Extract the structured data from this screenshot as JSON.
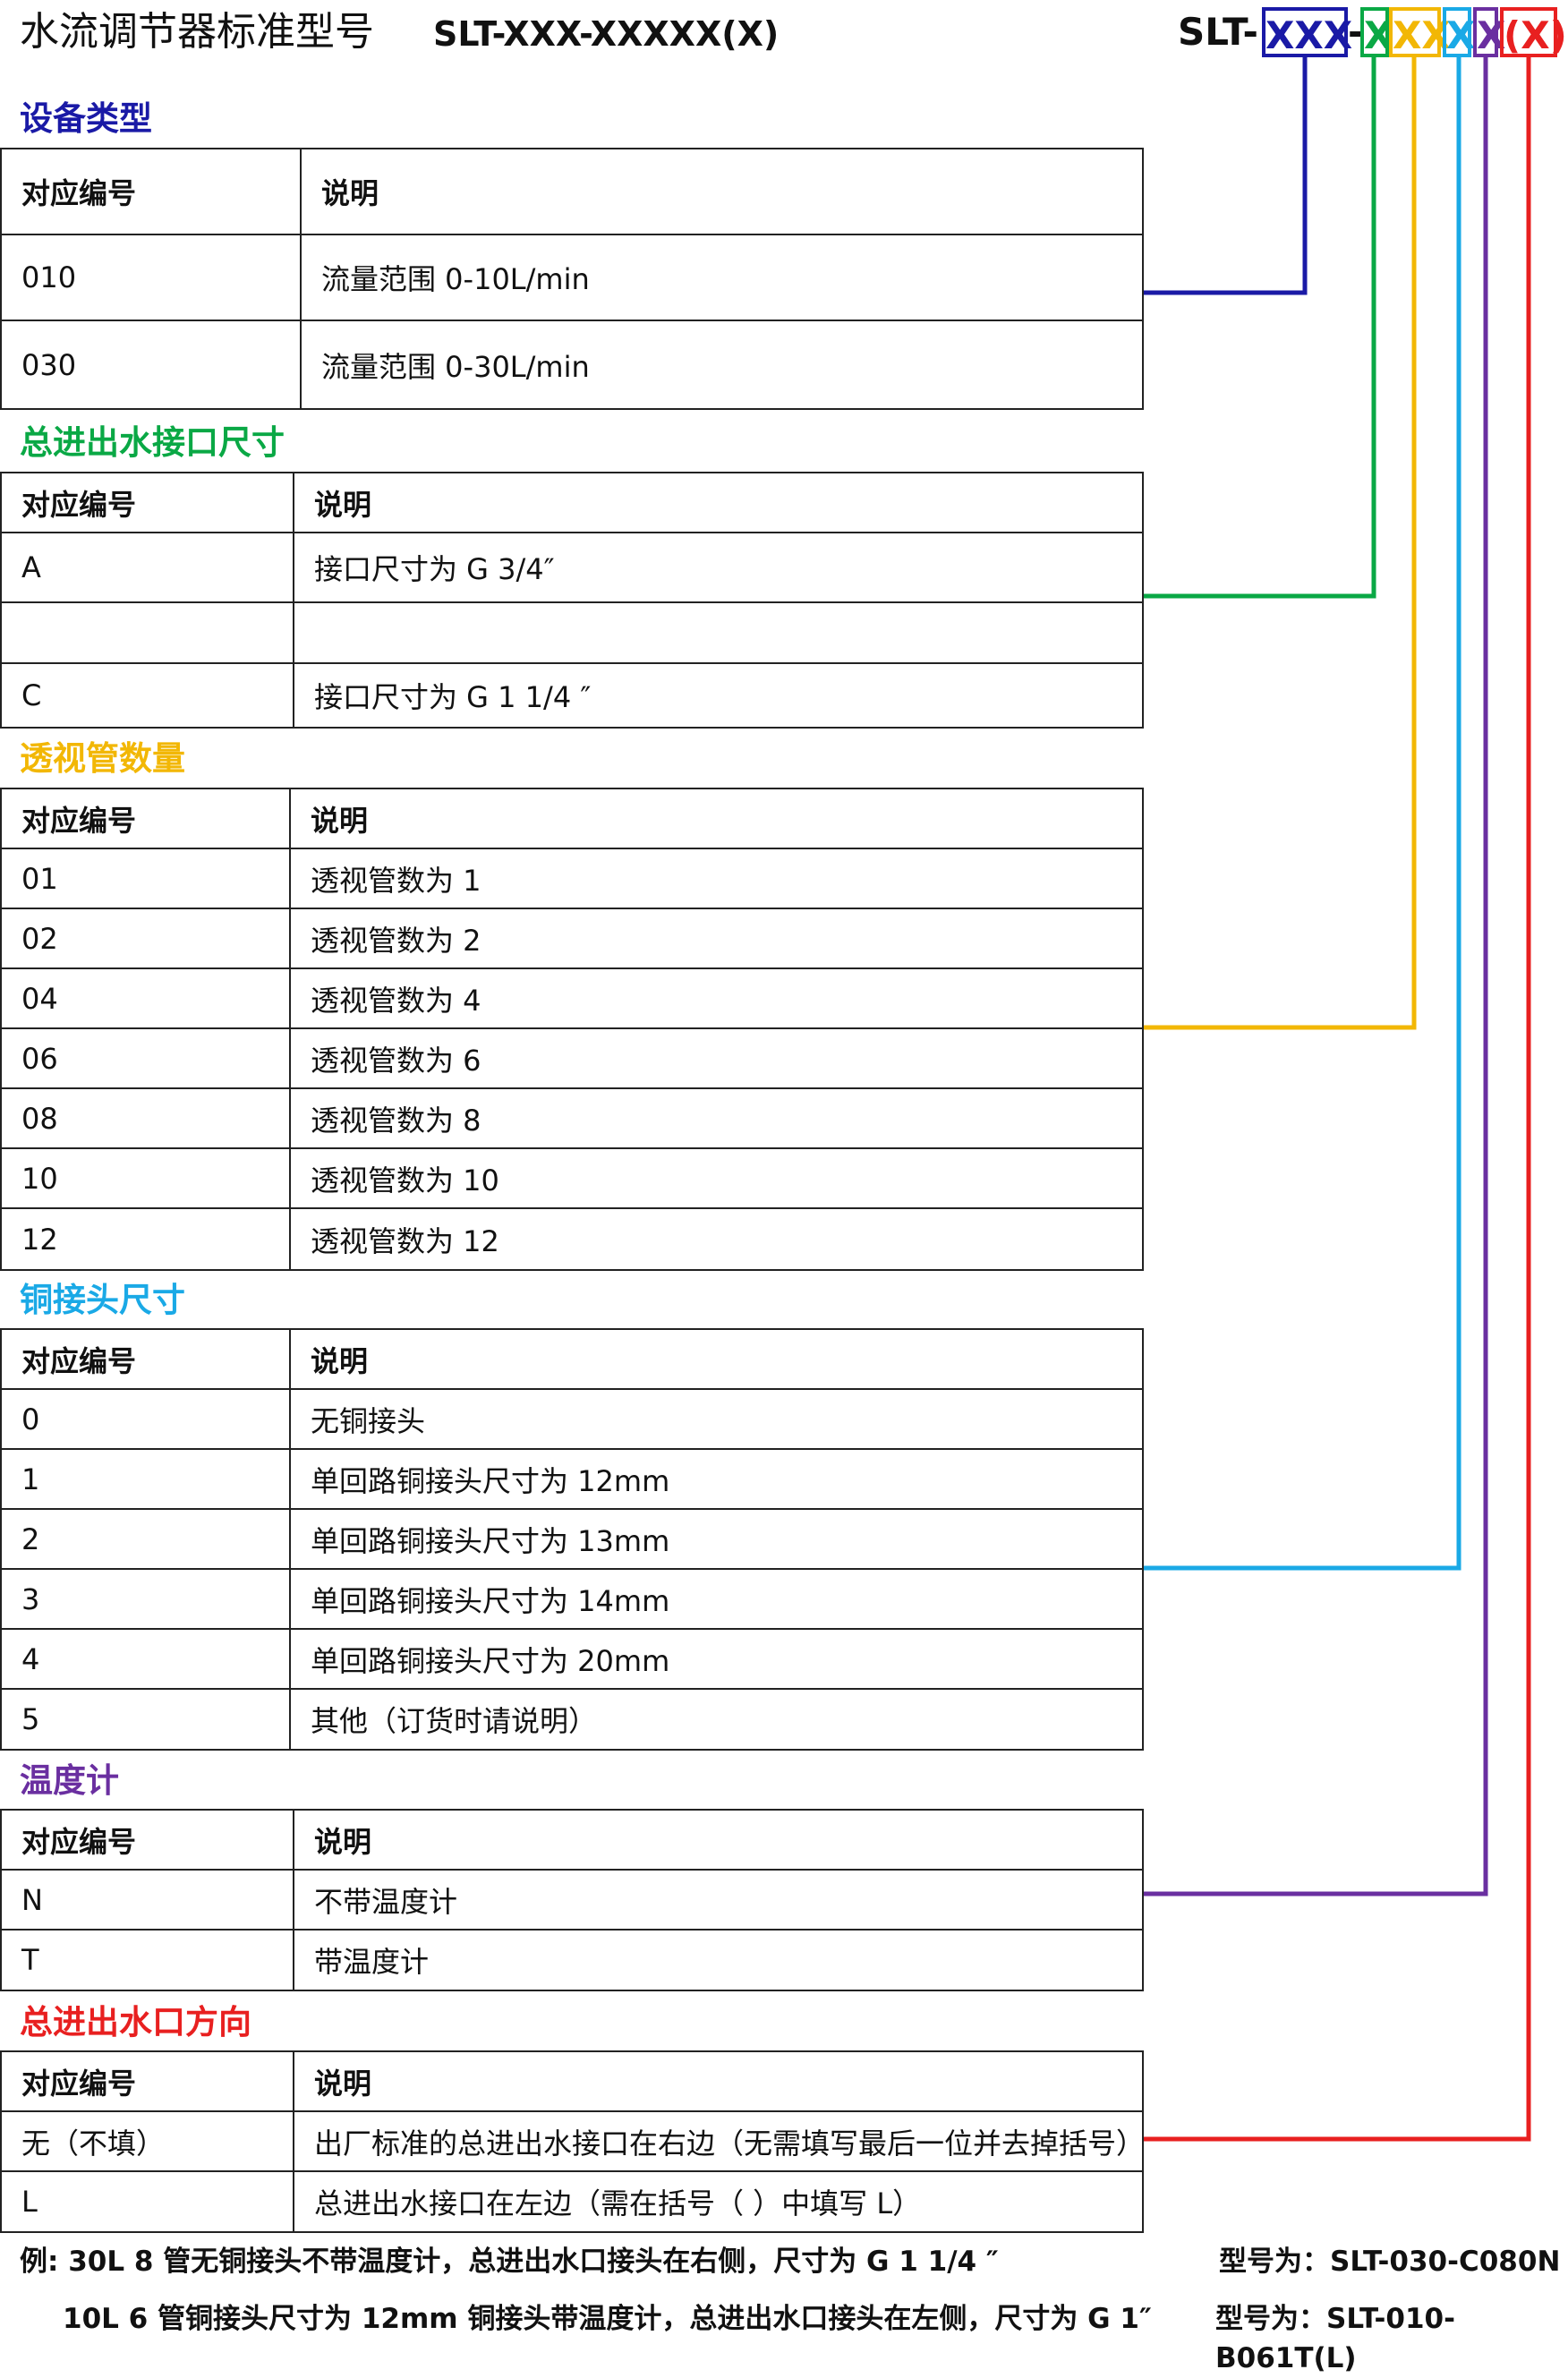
{
  "header": {
    "title": "水流调节器标准型号",
    "model": "SLT-XXX-XXXXX(X)"
  },
  "code": {
    "prefix": "SLT-",
    "seg1": "XXX",
    "dash": "-",
    "seg2": "X",
    "seg3": "XX",
    "seg4": "X",
    "seg5": "X",
    "seg6": "(X)"
  },
  "colors": {
    "device": "#1a1aa6",
    "interface": "#0aa845",
    "tube": "#f2b705",
    "copper": "#1aa9e6",
    "thermo": "#6a2fa0",
    "direction": "#e82020"
  },
  "sections": [
    {
      "title": "设备类型",
      "header": [
        "对应编号",
        "说明"
      ],
      "rows": [
        [
          "010",
          "流量范围    0-10L/min"
        ],
        [
          "030",
          "流量范围    0-30L/min"
        ]
      ]
    },
    {
      "title": "总进出水接口尺寸",
      "header": [
        "对应编号",
        "说明"
      ],
      "rows": [
        [
          "A",
          "接口尺寸为  G 3/4″"
        ],
        [
          "",
          ""
        ],
        [
          "C",
          "接口尺寸为  G 1 1/4 ″"
        ]
      ]
    },
    {
      "title": "透视管数量",
      "header": [
        "对应编号",
        "说明"
      ],
      "rows": [
        [
          "01",
          "透视管数为  1"
        ],
        [
          "02",
          "透视管数为  2"
        ],
        [
          "04",
          "透视管数为  4"
        ],
        [
          "06",
          "透视管数为  6"
        ],
        [
          "08",
          "透视管数为  8"
        ],
        [
          "10",
          "透视管数为  10"
        ],
        [
          "12",
          "透视管数为  12"
        ]
      ]
    },
    {
      "title": "铜接头尺寸",
      "header": [
        "对应编号",
        "说明"
      ],
      "rows": [
        [
          "0",
          "无铜接头"
        ],
        [
          "1",
          "单回路铜接头尺寸为 12mm"
        ],
        [
          "2",
          "单回路铜接头尺寸为 13mm"
        ],
        [
          "3",
          "单回路铜接头尺寸为 14mm"
        ],
        [
          "4",
          "单回路铜接头尺寸为 20mm"
        ],
        [
          "5",
          "其他（订货时请说明）"
        ]
      ]
    },
    {
      "title": "温度计",
      "header": [
        "对应编号",
        "说明"
      ],
      "rows": [
        [
          "N",
          "不带温度计"
        ],
        [
          "T",
          "带温度计"
        ]
      ]
    },
    {
      "title": "总进出水口方向",
      "header": [
        "对应编号",
        "说明"
      ],
      "rows": [
        [
          "无（不填）",
          "出厂标准的总进出水接口在右边（无需填写最后一位并去掉括号）"
        ],
        [
          "L",
          "总进出水接口在左边（需在括号（  ）中填写 L）"
        ]
      ]
    }
  ],
  "examples": [
    {
      "text": "例: 30L 8 管无铜接头不带温度计，总进出水口接头在右侧，尺寸为 G 1 1/4 ″",
      "model": "型号为：SLT-030-C080N"
    },
    {
      "text": "10L 6 管铜接头尺寸为 12mm 铜接头带温度计，总进出水口接头在左侧，尺寸为 G 1″",
      "model": "型号为：SLT-010-B061T(L)"
    }
  ]
}
